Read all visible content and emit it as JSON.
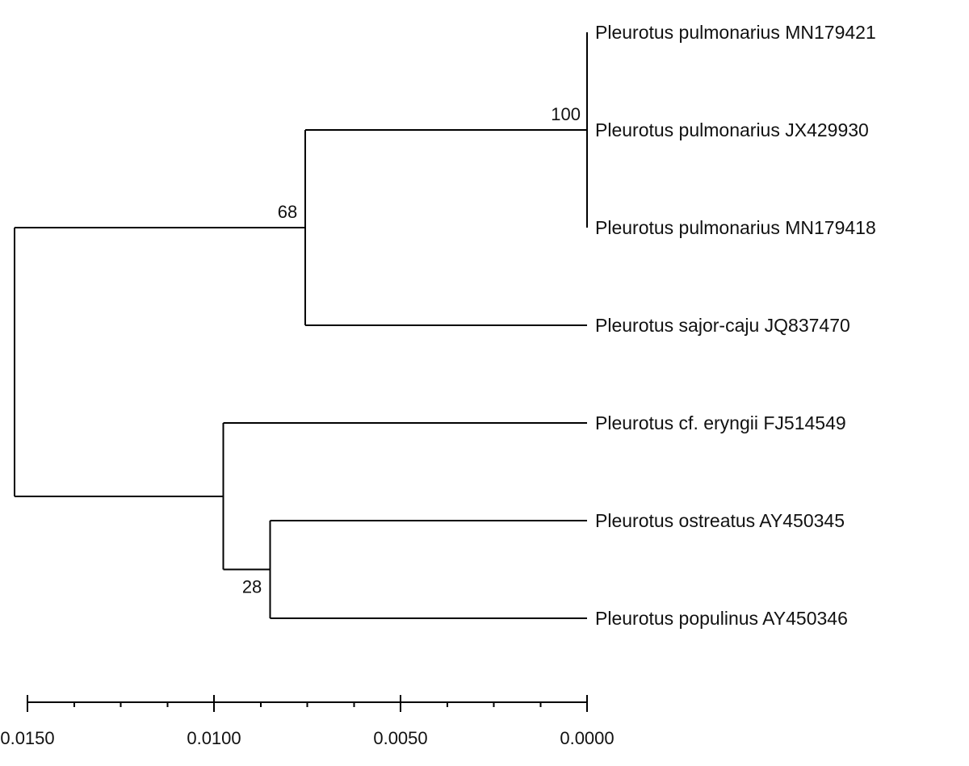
{
  "taxa": [
    "Pleurotus pulmonarius MN179421",
    "Pleurotus pulmonarius JX429930",
    "Pleurotus pulmonarius MN179418",
    "Pleurotus sajor-caju JQ837470",
    "Pleurotus cf. eryngii FJ514549",
    "Pleurotus ostreatus AY450345",
    "Pleurotus populinus AY450346"
  ],
  "support_values": {
    "pulmonarius_clade": "100",
    "pulmonarius_sajorcaju_clade": "68",
    "ostreatus_populinus_clade": "28"
  },
  "scale_axis": {
    "ticks": [
      0.015,
      0.01,
      0.005,
      0.0
    ],
    "tick_labels": [
      "0.0150",
      "0.0100",
      "0.0050",
      "0.0000"
    ],
    "direction": "reversed"
  },
  "node_heights": {
    "root": 0.01535,
    "pulmonarius_sajorcaju_clade": 0.00755,
    "pulmonarius_clade": 0.0,
    "eryngii_ostreatus_populinus_clade": 0.00975,
    "ostreatus_populinus_clade": 0.0085,
    "leaves": 0.0
  }
}
